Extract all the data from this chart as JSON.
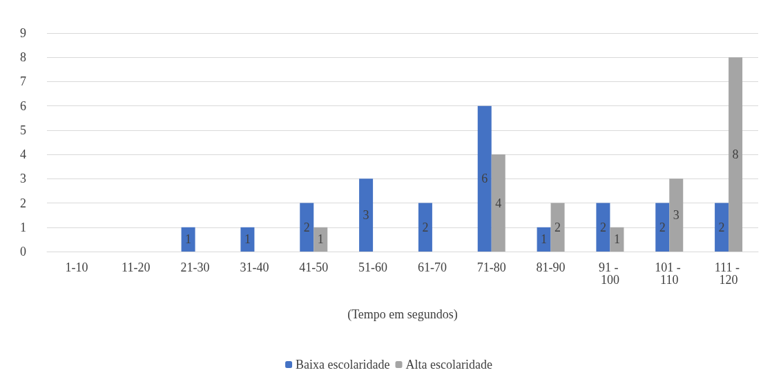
{
  "chart_data": {
    "type": "bar",
    "categories": [
      "1-10",
      "11-20",
      "21-30",
      "31-40",
      "41-50",
      "51-60",
      "61-70",
      "71-80",
      "81-90",
      "91 - 100",
      "101 - 110",
      "111 - 120"
    ],
    "series": [
      {
        "name": "Baixa escolaridade",
        "color": "#4472c4",
        "values": [
          0,
          0,
          1,
          1,
          2,
          3,
          2,
          6,
          1,
          2,
          2,
          2
        ],
        "value_labels": [
          null,
          null,
          "1",
          "1",
          "2",
          "3",
          "2",
          "6",
          "1",
          "2",
          "2",
          "2"
        ]
      },
      {
        "name": "Alta escolaridade",
        "color": "#a5a5a5",
        "values": [
          0,
          0,
          0,
          0,
          1,
          0,
          0,
          4,
          2,
          1,
          3,
          8
        ],
        "value_labels": [
          null,
          null,
          null,
          null,
          "1",
          null,
          null,
          "4",
          "2",
          "1",
          "3",
          "8"
        ]
      }
    ],
    "xlabel": "(Tempo em segundos)",
    "ylim": [
      0,
      9
    ],
    "yticks": [
      0,
      1,
      2,
      3,
      4,
      5,
      6,
      7,
      8,
      9
    ],
    "grid": "y",
    "legend": "bottom"
  }
}
